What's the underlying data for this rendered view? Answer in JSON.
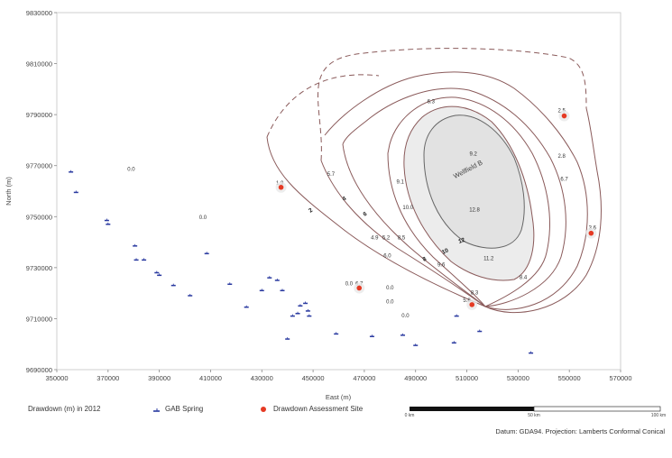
{
  "map": {
    "x_axis": {
      "label": "East (m)",
      "ticks": [
        "350000",
        "370000",
        "390000",
        "410000",
        "430000",
        "450000",
        "470000",
        "490000",
        "510000",
        "530000",
        "550000",
        "570000"
      ]
    },
    "y_axis": {
      "label": "North (m)",
      "ticks": [
        "9830000",
        "9810000",
        "9790000",
        "9770000",
        "9750000",
        "9730000",
        "9710000",
        "9690000"
      ]
    },
    "wellfield_label": "Wellfield B",
    "contour_labels": [
      "2",
      "4",
      "6",
      "8",
      "10",
      "12"
    ],
    "value_labels": [
      {
        "text": "0.0",
        "e": 379000,
        "n": 9768000
      },
      {
        "text": "0.0",
        "e": 407000,
        "n": 9749000
      },
      {
        "text": "1.9",
        "e": 437000,
        "n": 9762500
      },
      {
        "text": "5.7",
        "e": 457000,
        "n": 9766000
      },
      {
        "text": "6.3",
        "e": 496000,
        "n": 9794500
      },
      {
        "text": "9.2",
        "e": 512500,
        "n": 9774000
      },
      {
        "text": "9.1",
        "e": 484000,
        "n": 9763000
      },
      {
        "text": "10.0",
        "e": 487000,
        "n": 9753000
      },
      {
        "text": "12.8",
        "e": 513000,
        "n": 9752000
      },
      {
        "text": "4.9",
        "e": 474000,
        "n": 9741000
      },
      {
        "text": "5.2",
        "e": 478500,
        "n": 9741000
      },
      {
        "text": "8.5",
        "e": 484500,
        "n": 9741000
      },
      {
        "text": "6.0",
        "e": 479000,
        "n": 9734000
      },
      {
        "text": "9.6",
        "e": 500000,
        "n": 9730500
      },
      {
        "text": "11.2",
        "e": 518500,
        "n": 9733000
      },
      {
        "text": "8.4",
        "e": 532000,
        "n": 9725500
      },
      {
        "text": "8.3",
        "e": 513000,
        "n": 9719500
      },
      {
        "text": "0.0",
        "e": 464000,
        "n": 9723000
      },
      {
        "text": "6.7",
        "e": 468000,
        "n": 9723000
      },
      {
        "text": "0.0",
        "e": 480000,
        "n": 9721500
      },
      {
        "text": "0.0",
        "e": 480000,
        "n": 9716000
      },
      {
        "text": "0.0",
        "e": 486000,
        "n": 9710500
      },
      {
        "text": "5.8",
        "e": 510000,
        "n": 9716500
      },
      {
        "text": "2.5",
        "e": 547000,
        "n": 9791000
      },
      {
        "text": "2.8",
        "e": 547000,
        "n": 9773000
      },
      {
        "text": "6.7",
        "e": 548000,
        "n": 9764000
      },
      {
        "text": "3.6",
        "e": 559000,
        "n": 9745000
      }
    ],
    "assessment_sites": [
      {
        "e": 437500,
        "n": 9761500
      },
      {
        "e": 468000,
        "n": 9722000
      },
      {
        "e": 512000,
        "n": 9715500
      },
      {
        "e": 548000,
        "n": 9789500
      },
      {
        "e": 558500,
        "n": 9743500
      }
    ],
    "springs": [
      [
        355500,
        9767500
      ],
      [
        357500,
        9759500
      ],
      [
        369500,
        9748500
      ],
      [
        370000,
        9747000
      ],
      [
        380500,
        9738500
      ],
      [
        381000,
        9733000
      ],
      [
        384000,
        9733000
      ],
      [
        389000,
        9728000
      ],
      [
        390000,
        9727000
      ],
      [
        395500,
        9723000
      ],
      [
        402000,
        9719000
      ],
      [
        408500,
        9735500
      ],
      [
        417500,
        9723500
      ],
      [
        424000,
        9714500
      ],
      [
        430000,
        9721000
      ],
      [
        433000,
        9726000
      ],
      [
        436000,
        9725000
      ],
      [
        438000,
        9721000
      ],
      [
        442000,
        9711000
      ],
      [
        444000,
        9712000
      ],
      [
        445000,
        9715000
      ],
      [
        447000,
        9716000
      ],
      [
        448000,
        9713000
      ],
      [
        448500,
        9711000
      ],
      [
        440000,
        9702000
      ],
      [
        459000,
        9704000
      ],
      [
        473000,
        9703000
      ],
      [
        485000,
        9703500
      ],
      [
        490000,
        9699500
      ],
      [
        505000,
        9700500
      ],
      [
        506000,
        9711000
      ],
      [
        515000,
        9705000
      ],
      [
        535000,
        9696500
      ]
    ],
    "colors": {
      "contour": "#8a5a5a",
      "inner_fill": "#ececec",
      "site": "#e53a24",
      "spring": "#2a3aa0"
    }
  },
  "legend": {
    "drawdown_label": "Drawdown (m) in 2012",
    "spring_label": "GAB Spring",
    "site_label": "Drawdown Assessment Site",
    "spring_icon": "spring-symbol-icon",
    "site_icon": "red-circle-icon"
  },
  "scale_bar": {
    "labels": [
      "0 km",
      "50 km",
      "100 km"
    ]
  },
  "datum": "Datum: GDA94. Projection: Lamberts Conformal Conical"
}
